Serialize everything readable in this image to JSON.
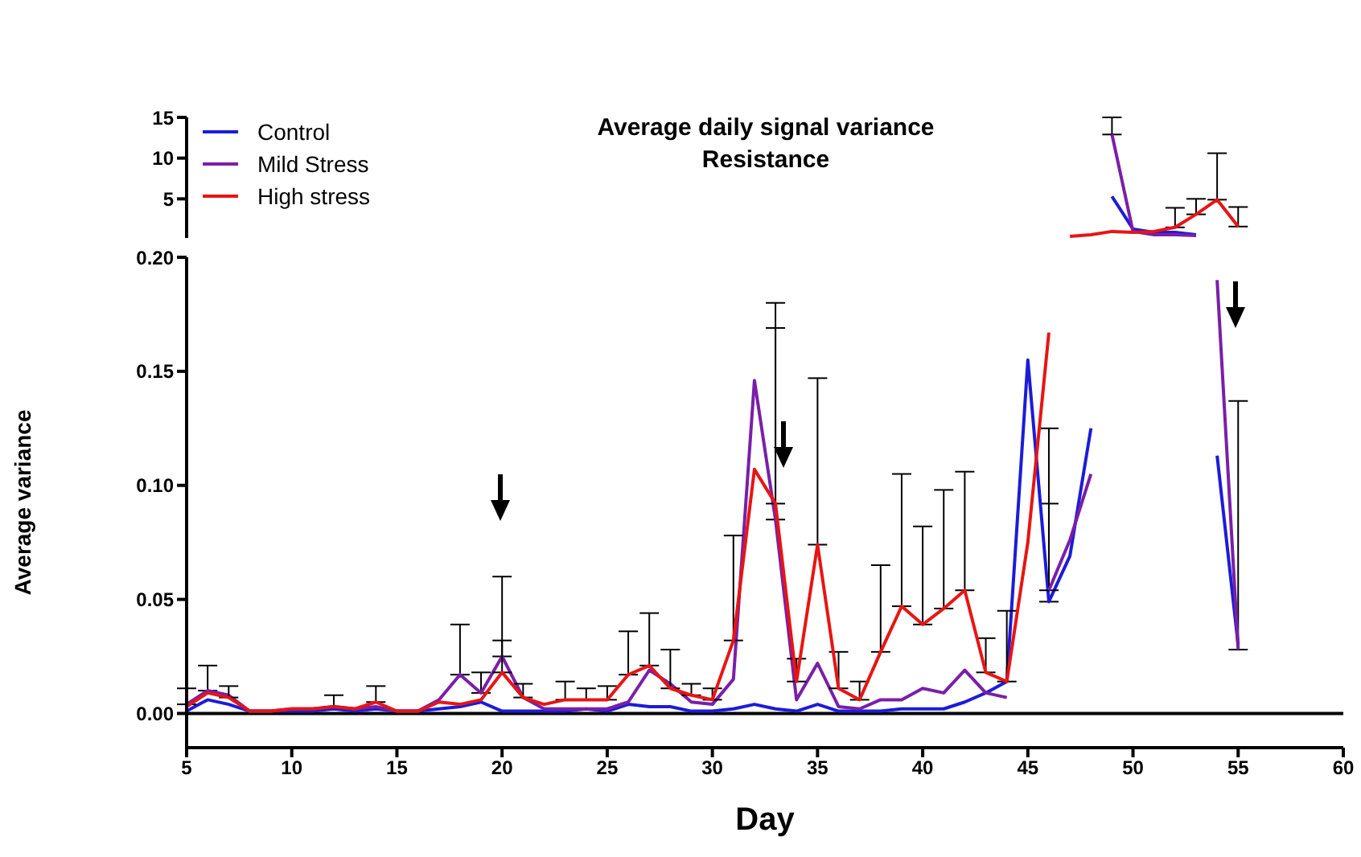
{
  "chart_data": [
    {
      "type": "line",
      "title": "Average daily signal variance",
      "subtitle": "Resistance",
      "x": [
        47,
        48,
        49,
        50,
        51,
        52,
        53,
        54,
        55
      ],
      "xlim": [
        5,
        60
      ],
      "ylim": [
        0.2,
        15
      ],
      "yticks": [
        5,
        10,
        15
      ],
      "tick_labels": "y",
      "legend": "top left",
      "series": [
        {
          "name": "Control",
          "color": "#1c1cd8",
          "values": [
            null,
            null,
            5.3,
            1.3,
            0.9,
            0.9,
            0.6,
            null,
            null
          ]
        },
        {
          "name": "Mild Stress",
          "color": "#7a1fa8",
          "values": [
            null,
            null,
            12.9,
            1.0,
            0.6,
            0.6,
            0.5,
            null,
            null
          ],
          "errors": [
            null,
            null,
            [
              12.9,
              15
            ],
            null,
            null,
            null,
            null,
            null,
            null
          ]
        },
        {
          "name": "High stress",
          "color": "#e81414",
          "values": [
            0.4,
            0.6,
            1.0,
            0.9,
            1.0,
            1.5,
            3.1,
            4.9,
            1.6
          ],
          "errors": [
            null,
            null,
            null,
            null,
            null,
            [
              1.5,
              3.9
            ],
            [
              3.1,
              5.0
            ],
            [
              4.9,
              10.6
            ],
            [
              1.6,
              4.0
            ]
          ]
        }
      ]
    },
    {
      "type": "line",
      "xlabel": "Day",
      "ylabel": "Average variance",
      "x": [
        5,
        6,
        7,
        8,
        9,
        10,
        11,
        12,
        13,
        14,
        15,
        16,
        17,
        18,
        19,
        20,
        21,
        22,
        23,
        24,
        25,
        26,
        27,
        28,
        29,
        30,
        31,
        32,
        33,
        34,
        35,
        36,
        37,
        38,
        39,
        40,
        41,
        42,
        43,
        44,
        45,
        46,
        47,
        48,
        49,
        50,
        51,
        52,
        53,
        54,
        55
      ],
      "xlim": [
        5,
        60
      ],
      "xticks": [
        5,
        10,
        15,
        20,
        25,
        30,
        35,
        40,
        45,
        50,
        55,
        60
      ],
      "ylim": [
        -0.015,
        0.2
      ],
      "yticks": [
        {
          "value": 0,
          "label": "0.00"
        },
        {
          "value": 0.05,
          "label": "0.05"
        },
        {
          "value": 0.1,
          "label": "0.10"
        },
        {
          "value": 0.15,
          "label": "0.15"
        },
        {
          "value": 0.2,
          "label": "0.20"
        }
      ],
      "ref_lines": [
        {
          "axis": "y",
          "value": 0,
          "color": "#000000"
        }
      ],
      "series": [
        {
          "color": "#1c1cd8",
          "values": [
            0.001,
            0.006,
            0.004,
            0.001,
            0.001,
            0.001,
            0.001,
            0.002,
            0.001,
            0.002,
            0.001,
            0.001,
            0.002,
            0.003,
            0.005,
            0.001,
            0.001,
            0.001,
            0.001,
            0.002,
            0.001,
            0.004,
            0.003,
            0.003,
            0.001,
            0.001,
            0.002,
            0.004,
            0.002,
            0.001,
            0.004,
            0.001,
            0.001,
            0.001,
            0.002,
            0.002,
            0.002,
            0.005,
            0.009,
            0.014,
            0.155,
            0.049,
            0.069,
            0.125,
            null,
            null,
            null,
            null,
            null,
            0.113,
            0.03
          ],
          "errors": [
            null,
            null,
            null,
            null,
            null,
            null,
            null,
            null,
            null,
            null,
            null,
            null,
            null,
            null,
            null,
            null,
            null,
            null,
            null,
            null,
            null,
            null,
            null,
            null,
            null,
            null,
            null,
            null,
            null,
            null,
            null,
            null,
            null,
            null,
            null,
            null,
            null,
            null,
            null,
            null,
            null,
            [
              0.049,
              0.092
            ],
            null,
            null,
            null,
            null,
            null,
            null,
            null,
            null,
            null
          ]
        },
        {
          "color": "#7a1fa8",
          "values": [
            0.004,
            0.01,
            0.008,
            0.001,
            0.001,
            0.002,
            0.002,
            0.003,
            0.002,
            0.003,
            0.001,
            0.001,
            0.006,
            0.017,
            0.009,
            0.025,
            0.007,
            0.002,
            0.002,
            0.002,
            0.002,
            0.005,
            0.019,
            0.013,
            0.005,
            0.004,
            0.015,
            0.146,
            0.085,
            0.006,
            0.022,
            0.003,
            0.002,
            0.006,
            0.006,
            0.011,
            0.009,
            0.019,
            0.009,
            0.007,
            null,
            0.054,
            0.076,
            0.105,
            null,
            null,
            null,
            null,
            null,
            0.19,
            0.028
          ],
          "errors": [
            [
              0.004,
              0.011
            ],
            [
              0.01,
              0.021
            ],
            null,
            null,
            null,
            null,
            null,
            null,
            null,
            null,
            null,
            null,
            null,
            [
              0.017,
              0.039
            ],
            [
              0.009,
              0.018
            ],
            [
              0.025,
              0.06
            ],
            null,
            null,
            null,
            null,
            null,
            null,
            null,
            null,
            null,
            null,
            null,
            null,
            [
              0.085,
              0.169
            ],
            null,
            null,
            null,
            null,
            null,
            null,
            null,
            null,
            null,
            null,
            null,
            null,
            [
              0.054,
              0.125
            ],
            null,
            null,
            null,
            null,
            null,
            null,
            null,
            null,
            [
              0.028,
              0.137
            ]
          ]
        },
        {
          "color": "#e81414",
          "values": [
            0.003,
            0.009,
            0.007,
            0.001,
            0.001,
            0.002,
            0.002,
            0.003,
            0.002,
            0.005,
            0.001,
            0.001,
            0.005,
            0.004,
            0.006,
            0.018,
            0.007,
            0.004,
            0.006,
            0.006,
            0.006,
            0.017,
            0.021,
            0.011,
            0.008,
            0.006,
            0.032,
            0.107,
            0.092,
            0.014,
            0.074,
            0.011,
            0.006,
            0.027,
            0.047,
            0.039,
            0.046,
            0.054,
            0.018,
            0.014,
            0.075,
            0.167,
            null,
            null,
            null,
            null,
            null,
            null,
            null,
            null,
            null
          ],
          "errors": [
            null,
            null,
            [
              0.007,
              0.012
            ],
            null,
            null,
            null,
            null,
            [
              0.003,
              0.008
            ],
            null,
            [
              0.005,
              0.012
            ],
            null,
            null,
            null,
            null,
            null,
            [
              0.018,
              0.032
            ],
            [
              0.007,
              0.013
            ],
            null,
            [
              0.006,
              0.014
            ],
            [
              0.006,
              0.011
            ],
            [
              0.006,
              0.012
            ],
            [
              0.017,
              0.036
            ],
            [
              0.021,
              0.044
            ],
            [
              0.011,
              0.028
            ],
            [
              0.008,
              0.013
            ],
            [
              0.006,
              0.011
            ],
            [
              0.032,
              0.078
            ],
            null,
            [
              0.092,
              0.18
            ],
            [
              0.014,
              0.024
            ],
            [
              0.074,
              0.147
            ],
            [
              0.011,
              0.027
            ],
            [
              0.006,
              0.014
            ],
            [
              0.027,
              0.065
            ],
            [
              0.047,
              0.105
            ],
            [
              0.039,
              0.082
            ],
            [
              0.046,
              0.098
            ],
            [
              0.054,
              0.106
            ],
            [
              0.018,
              0.033
            ],
            [
              0.014,
              0.045
            ],
            null,
            null,
            null,
            null,
            null,
            null,
            null,
            null,
            null,
            null,
            null
          ]
        }
      ]
    }
  ]
}
